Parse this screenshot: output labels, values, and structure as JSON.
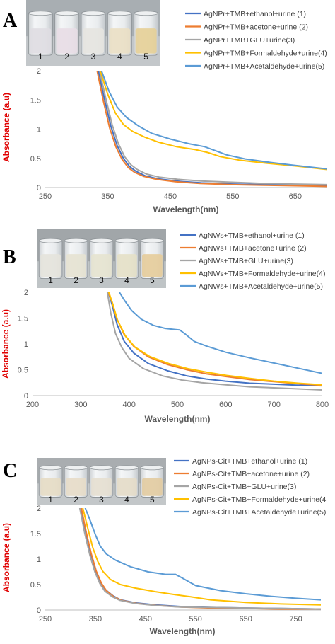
{
  "colors": {
    "series": [
      "#4472c4",
      "#ed7d31",
      "#a5a5a5",
      "#ffc000",
      "#5b9bd5"
    ],
    "ylabel": "#e00000"
  },
  "chart_data": [
    {
      "panel": "A",
      "type": "line",
      "xlabel": "Wavelength(nm)",
      "ylabel": "Absorbance (a.u)",
      "xlim": [
        250,
        700
      ],
      "ylim": [
        0,
        2
      ],
      "xticks": [
        250,
        350,
        450,
        550,
        650
      ],
      "yticks": [
        0,
        0.5,
        1,
        1.5,
        2
      ],
      "xtick_labels": [
        "250",
        "350",
        "450",
        "550",
        "650"
      ],
      "ytick_labels": [
        "0",
        "0.5",
        "1",
        "1.5",
        "2"
      ],
      "grid": false,
      "legend": "top-right",
      "vial_labels": [
        "1",
        "2",
        "3",
        "4",
        "5"
      ],
      "series": [
        {
          "name": "AgNPr+TMB+ethanol+urine (1)",
          "x": [
            335,
            345,
            355,
            365,
            375,
            385,
            395,
            410,
            430,
            460,
            500,
            550,
            600,
            650,
            700
          ],
          "y": [
            2.0,
            1.5,
            1.05,
            0.72,
            0.5,
            0.36,
            0.28,
            0.2,
            0.15,
            0.11,
            0.08,
            0.06,
            0.05,
            0.04,
            0.03
          ]
        },
        {
          "name": "AgNPr+TMB+acetone+urine (2)",
          "x": [
            333,
            343,
            353,
            363,
            373,
            383,
            393,
            408,
            428,
            458,
            498,
            548,
            600,
            650,
            700
          ],
          "y": [
            2.0,
            1.48,
            1.02,
            0.7,
            0.48,
            0.34,
            0.26,
            0.19,
            0.14,
            0.1,
            0.07,
            0.05,
            0.04,
            0.03,
            0.02
          ]
        },
        {
          "name": "AgNPr+TMB+GLU+urine(3)",
          "x": [
            337,
            347,
            357,
            367,
            377,
            387,
            397,
            412,
            432,
            462,
            502,
            552,
            600,
            650,
            700
          ],
          "y": [
            2.0,
            1.52,
            1.08,
            0.75,
            0.53,
            0.39,
            0.31,
            0.23,
            0.18,
            0.14,
            0.11,
            0.09,
            0.07,
            0.06,
            0.05
          ]
        },
        {
          "name": "AgNPr+TMB+Formaldehyde+urine(4)",
          "x": [
            338,
            350,
            362,
            375,
            390,
            410,
            430,
            460,
            490,
            510,
            530,
            560,
            600,
            650,
            700
          ],
          "y": [
            2.0,
            1.6,
            1.28,
            1.08,
            0.96,
            0.86,
            0.78,
            0.7,
            0.65,
            0.6,
            0.53,
            0.47,
            0.42,
            0.37,
            0.31
          ]
        },
        {
          "name": "AgNPr+TMB+Acetaldehyde+urine(5)",
          "x": [
            340,
            352,
            365,
            380,
            400,
            420,
            450,
            480,
            505,
            520,
            540,
            570,
            610,
            650,
            700
          ],
          "y": [
            2.0,
            1.65,
            1.38,
            1.2,
            1.05,
            0.93,
            0.83,
            0.75,
            0.7,
            0.64,
            0.56,
            0.49,
            0.43,
            0.38,
            0.32
          ]
        }
      ]
    },
    {
      "panel": "B",
      "type": "line",
      "xlabel": "Wavelength(nm)",
      "ylabel": "Absorbance (a.u)",
      "xlim": [
        200,
        800
      ],
      "ylim": [
        0,
        2
      ],
      "xticks": [
        200,
        300,
        400,
        500,
        600,
        700,
        800
      ],
      "yticks": [
        0,
        0.5,
        1,
        1.5,
        2
      ],
      "xtick_labels": [
        "200",
        "300",
        "400",
        "500",
        "600",
        "700",
        "800"
      ],
      "ytick_labels": [
        "0",
        "0.5",
        "1",
        "1.5",
        "2"
      ],
      "grid": false,
      "legend": "top-right",
      "vial_labels": [
        "1",
        "2",
        "3",
        "4",
        "5"
      ],
      "series": [
        {
          "name": "AgNWs+TMB+ethanol+urine (1)",
          "x": [
            357,
            365,
            375,
            390,
            410,
            440,
            480,
            520,
            560,
            600,
            650,
            700,
            750,
            800
          ],
          "y": [
            2.0,
            1.75,
            1.38,
            1.05,
            0.82,
            0.62,
            0.48,
            0.38,
            0.32,
            0.28,
            0.24,
            0.22,
            0.2,
            0.19
          ]
        },
        {
          "name": "AgNWs+TMB+acetone+urine (2)",
          "x": [
            357,
            365,
            375,
            390,
            410,
            440,
            480,
            520,
            560,
            600,
            650,
            700,
            750,
            800
          ],
          "y": [
            2.0,
            1.8,
            1.48,
            1.18,
            0.95,
            0.75,
            0.6,
            0.5,
            0.42,
            0.37,
            0.31,
            0.27,
            0.23,
            0.2
          ]
        },
        {
          "name": "AgNWs+TMB+GLU+urine(3)",
          "x": [
            355,
            362,
            372,
            385,
            400,
            430,
            470,
            510,
            550,
            600,
            650,
            700,
            750,
            800
          ],
          "y": [
            2.0,
            1.6,
            1.2,
            0.93,
            0.72,
            0.52,
            0.38,
            0.3,
            0.25,
            0.21,
            0.17,
            0.15,
            0.13,
            0.11
          ]
        },
        {
          "name": "AgNWs+TMB+Formaldehyde+urine(4)",
          "x": [
            358,
            366,
            376,
            392,
            412,
            442,
            482,
            522,
            562,
            602,
            652,
            700,
            750,
            800
          ],
          "y": [
            2.0,
            1.78,
            1.46,
            1.16,
            0.94,
            0.76,
            0.62,
            0.52,
            0.45,
            0.39,
            0.33,
            0.28,
            0.24,
            0.21
          ]
        },
        {
          "name": "AgNWs+TMB+Acetaldehyde+urine(5)",
          "x": [
            380,
            390,
            405,
            425,
            450,
            475,
            495,
            505,
            515,
            535,
            560,
            600,
            650,
            700,
            750,
            800
          ],
          "y": [
            2.0,
            1.85,
            1.65,
            1.48,
            1.36,
            1.3,
            1.28,
            1.27,
            1.2,
            1.05,
            0.96,
            0.84,
            0.73,
            0.63,
            0.53,
            0.43
          ]
        }
      ]
    },
    {
      "panel": "C",
      "type": "line",
      "xlabel": "Wavelength(nm)",
      "ylabel": "Absorbance (a.u)",
      "xlim": [
        250,
        800
      ],
      "ylim": [
        0,
        2
      ],
      "xticks": [
        250,
        350,
        450,
        550,
        650,
        750
      ],
      "yticks": [
        0,
        0.5,
        1,
        1.5,
        2
      ],
      "xtick_labels": [
        "250",
        "350",
        "450",
        "550",
        "650",
        "750"
      ],
      "ytick_labels": [
        "0",
        "0.5",
        "1",
        "1.5",
        "2"
      ],
      "grid": false,
      "legend": "top-right",
      "vial_labels": [
        "1",
        "2",
        "3",
        "4",
        "5"
      ],
      "series": [
        {
          "name": "AgNPs-Cit+TMB+ethanol+urine (1)",
          "x": [
            320,
            330,
            340,
            350,
            360,
            370,
            385,
            400,
            430,
            470,
            520,
            580,
            650,
            720,
            800
          ],
          "y": [
            2.0,
            1.55,
            1.12,
            0.78,
            0.55,
            0.4,
            0.28,
            0.2,
            0.14,
            0.1,
            0.07,
            0.05,
            0.04,
            0.03,
            0.02
          ]
        },
        {
          "name": "AgNPs-Cit+TMB+acetone+urine (2)",
          "x": [
            322,
            332,
            342,
            352,
            362,
            372,
            387,
            402,
            432,
            472,
            522,
            580,
            650,
            720,
            800
          ],
          "y": [
            2.0,
            1.52,
            1.1,
            0.76,
            0.53,
            0.38,
            0.26,
            0.19,
            0.13,
            0.09,
            0.06,
            0.04,
            0.03,
            0.02,
            0.02
          ]
        },
        {
          "name": "AgNPs-Cit+TMB+GLU+urine(3)",
          "x": [
            319,
            329,
            339,
            349,
            359,
            369,
            384,
            399,
            429,
            469,
            519,
            580,
            650,
            720,
            800
          ],
          "y": [
            2.0,
            1.5,
            1.08,
            0.75,
            0.52,
            0.37,
            0.26,
            0.19,
            0.13,
            0.09,
            0.06,
            0.05,
            0.04,
            0.03,
            0.02
          ]
        },
        {
          "name": "AgNPs-Cit+TMB+Formaldehyde+urine(4",
          "x": [
            325,
            335,
            345,
            355,
            365,
            380,
            400,
            430,
            470,
            510,
            540,
            580,
            650,
            720,
            800
          ],
          "y": [
            2.0,
            1.6,
            1.22,
            0.95,
            0.76,
            0.6,
            0.5,
            0.43,
            0.36,
            0.3,
            0.26,
            0.2,
            0.15,
            0.12,
            0.1
          ]
        },
        {
          "name": "AgNPs-Cit+TMB+Acetaldehyde+urine(5)",
          "x": [
            330,
            340,
            350,
            360,
            372,
            390,
            420,
            455,
            490,
            510,
            525,
            550,
            600,
            650,
            700,
            750,
            800
          ],
          "y": [
            2.0,
            1.75,
            1.48,
            1.25,
            1.1,
            0.98,
            0.85,
            0.75,
            0.7,
            0.7,
            0.62,
            0.48,
            0.38,
            0.32,
            0.27,
            0.23,
            0.2
          ]
        }
      ]
    }
  ]
}
